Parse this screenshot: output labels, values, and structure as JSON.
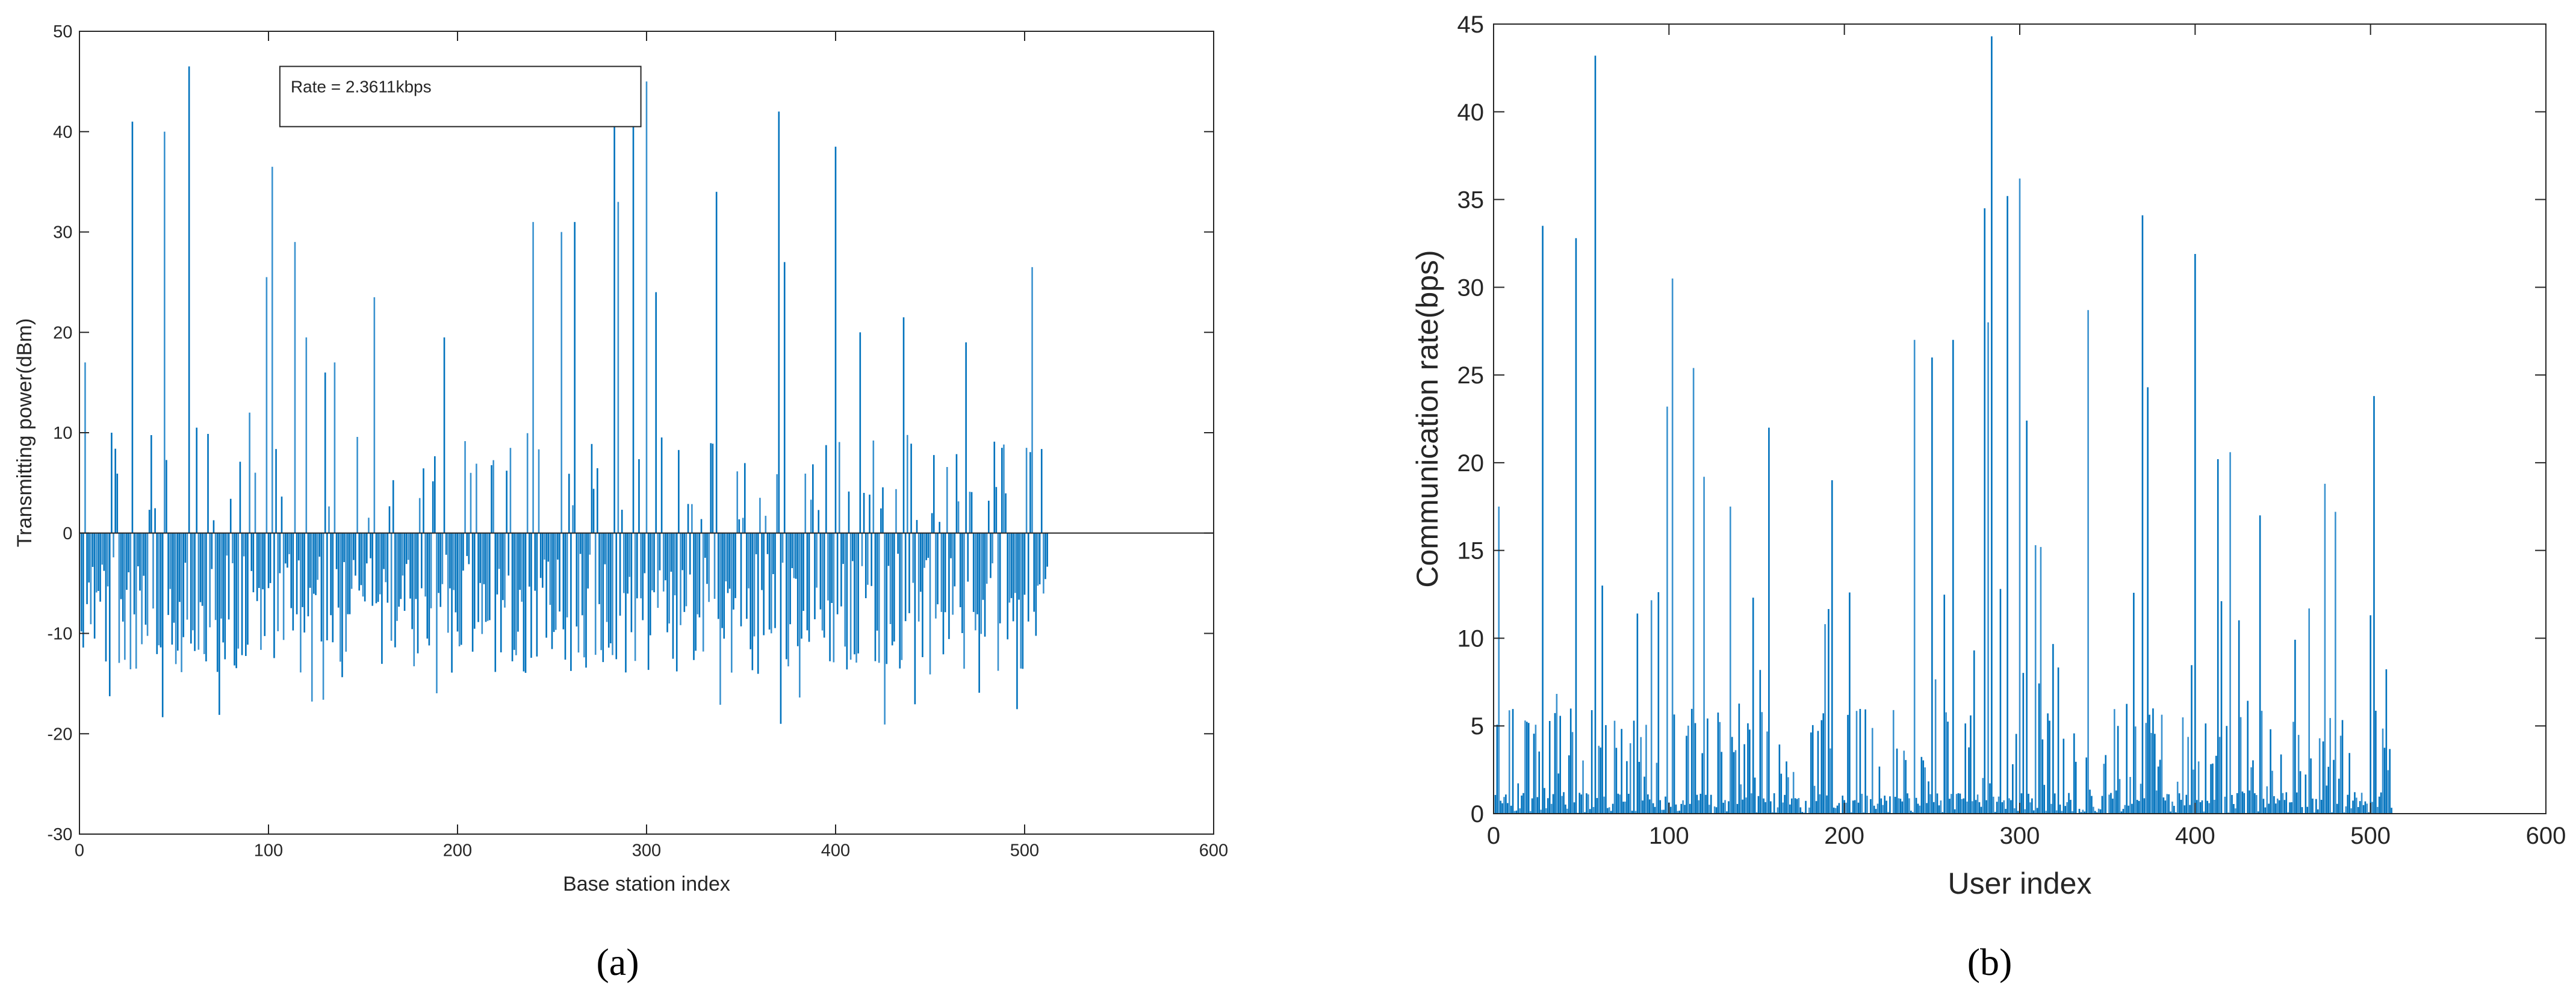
{
  "figure": {
    "captions": [
      "(a)",
      "(b)"
    ],
    "bar_color": "#0072BD",
    "bar_color_light": "#3A92CF"
  },
  "chart_data": [
    {
      "type": "bar",
      "title": "",
      "xlabel": "Base station index",
      "ylabel": "Transmitting power(dBm)",
      "xlim": [
        0,
        600
      ],
      "ylim": [
        -30,
        50
      ],
      "xticks": [
        0,
        100,
        200,
        300,
        400,
        500,
        600
      ],
      "yticks": [
        -30,
        -20,
        -10,
        0,
        10,
        20,
        30,
        40,
        50
      ],
      "grid": false,
      "annotation": "Rate = 2.3611kbps",
      "n_points": 512,
      "highlight_values": {
        "x": [
          3,
          17,
          28,
          45,
          58,
          62,
          90,
          99,
          102,
          114,
          120,
          130,
          135,
          156,
          193,
          207,
          240,
          255,
          262,
          283,
          285,
          293,
          300,
          305,
          337,
          370,
          373,
          400,
          413,
          436,
          469,
          504
        ],
        "y": [
          17,
          10,
          41,
          40,
          46.5,
          10.5,
          12,
          25.5,
          36.5,
          29,
          19.5,
          16,
          17,
          23.5,
          19.5,
          6,
          31,
          30,
          31,
          46.5,
          33,
          43.5,
          45,
          24,
          34,
          42,
          27,
          38.5,
          20,
          21.5,
          19,
          26.5
        ]
      },
      "negative_values_range": [
        -23,
        -1
      ]
    },
    {
      "type": "bar",
      "title": "",
      "xlabel": "User index",
      "ylabel": "Communication rate(bps)",
      "xlim": [
        0,
        600
      ],
      "ylim": [
        0,
        45
      ],
      "xticks": [
        0,
        100,
        200,
        300,
        400,
        500,
        600
      ],
      "yticks": [
        0,
        5,
        10,
        15,
        20,
        25,
        30,
        35,
        40,
        45
      ],
      "grid": false,
      "n_points": 512,
      "highlight_values": {
        "x": [
          3,
          28,
          47,
          58,
          62,
          99,
          102,
          114,
          120,
          135,
          157,
          193,
          240,
          250,
          262,
          280,
          282,
          284,
          293,
          300,
          304,
          309,
          312,
          339,
          370,
          373,
          400,
          413,
          420,
          437,
          474,
          480,
          502
        ],
        "y": [
          17.5,
          33.5,
          32.8,
          43.2,
          13,
          23.2,
          30.5,
          25.4,
          19.2,
          17.5,
          22,
          19,
          27,
          26,
          27,
          34.5,
          28,
          44.3,
          35.2,
          36.2,
          22.4,
          15.3,
          15.2,
          28.7,
          34.1,
          24.3,
          31.9,
          20.2,
          20.6,
          17,
          18.8,
          17.2,
          23.8
        ]
      },
      "values_range": [
        0,
        44.3
      ]
    }
  ]
}
